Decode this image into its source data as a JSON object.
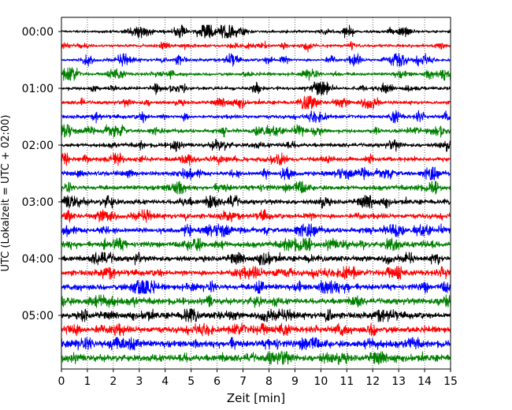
{
  "chart_data": {
    "type": "line",
    "subtype": "helicorder-seismogram",
    "xlabel": "Zeit  [min]",
    "ylabel": "UTC (Lokalzeit = UTC + 02:00)",
    "xlim": [
      0,
      15
    ],
    "x_ticks": [
      "0",
      "1",
      "2",
      "3",
      "4",
      "5",
      "6",
      "7",
      "8",
      "9",
      "10",
      "11",
      "12",
      "13",
      "14",
      "15"
    ],
    "y_tick_labels": [
      "00:00",
      "01:00",
      "02:00",
      "03:00",
      "04:00",
      "05:00"
    ],
    "grid": "vertical dotted at each minute",
    "trace_colors": [
      "#000000",
      "#ff0000",
      "#0000ff",
      "#008000"
    ],
    "trace_count": 24,
    "minutes_per_trace": 15,
    "start_time": "00:00",
    "traces": [
      {
        "start": "00:00",
        "color": "#000000"
      },
      {
        "start": "00:15",
        "color": "#ff0000"
      },
      {
        "start": "00:30",
        "color": "#0000ff"
      },
      {
        "start": "00:45",
        "color": "#008000"
      },
      {
        "start": "01:00",
        "color": "#000000"
      },
      {
        "start": "01:15",
        "color": "#ff0000"
      },
      {
        "start": "01:30",
        "color": "#0000ff"
      },
      {
        "start": "01:45",
        "color": "#008000"
      },
      {
        "start": "02:00",
        "color": "#000000"
      },
      {
        "start": "02:15",
        "color": "#ff0000"
      },
      {
        "start": "02:30",
        "color": "#0000ff"
      },
      {
        "start": "02:45",
        "color": "#008000"
      },
      {
        "start": "03:00",
        "color": "#000000"
      },
      {
        "start": "03:15",
        "color": "#ff0000"
      },
      {
        "start": "03:30",
        "color": "#0000ff"
      },
      {
        "start": "03:45",
        "color": "#008000"
      },
      {
        "start": "04:00",
        "color": "#000000"
      },
      {
        "start": "04:15",
        "color": "#ff0000"
      },
      {
        "start": "04:30",
        "color": "#0000ff"
      },
      {
        "start": "04:45",
        "color": "#008000"
      },
      {
        "start": "05:00",
        "color": "#000000"
      },
      {
        "start": "05:15",
        "color": "#ff0000"
      },
      {
        "start": "05:30",
        "color": "#0000ff"
      },
      {
        "start": "05:45",
        "color": "#008000"
      }
    ]
  }
}
